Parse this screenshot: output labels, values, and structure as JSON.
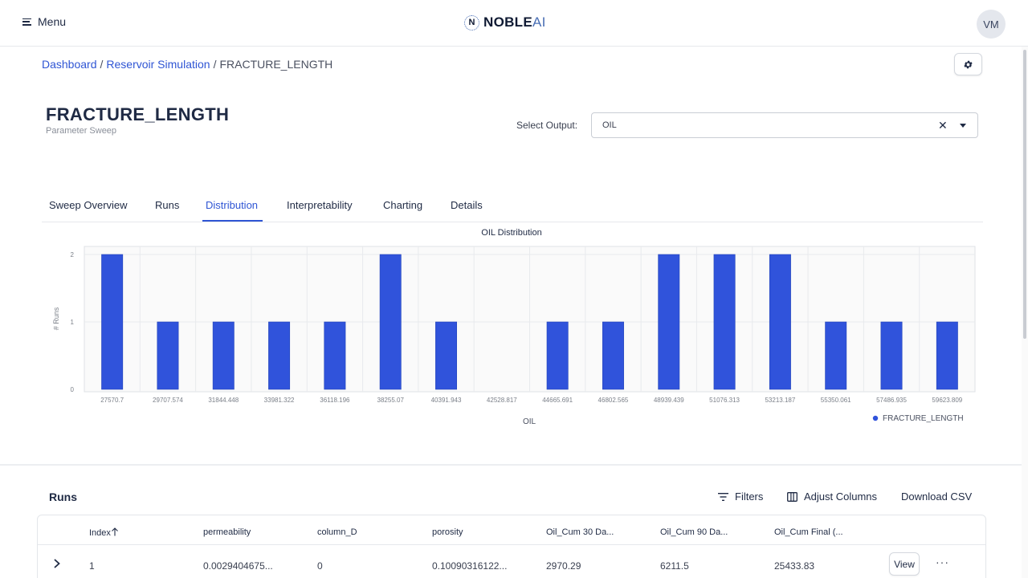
{
  "header": {
    "menu_label": "Menu",
    "logo_mark": "N",
    "logo_main": "NOBLE",
    "logo_accent": "AI",
    "avatar_initials": "VM"
  },
  "breadcrumb": {
    "items": [
      "Dashboard",
      "Reservoir Simulation"
    ],
    "current": "FRACTURE_LENGTH",
    "separator": "/"
  },
  "page": {
    "title": "FRACTURE_LENGTH",
    "subtitle": "Parameter Sweep"
  },
  "output_select": {
    "label": "Select Output:",
    "value": "OIL",
    "clear_glyph": "✕"
  },
  "tabs": [
    {
      "label": "Sweep Overview",
      "active": false
    },
    {
      "label": "Runs",
      "active": false
    },
    {
      "label": "Distribution",
      "active": true
    },
    {
      "label": "Interpretability",
      "active": false
    },
    {
      "label": "Charting",
      "active": false
    },
    {
      "label": "Details",
      "active": false
    }
  ],
  "chart_data": {
    "type": "bar",
    "title": "OIL Distribution",
    "xlabel": "OIL",
    "ylabel": "# Runs",
    "categories": [
      "27570.7",
      "29707.574",
      "31844.448",
      "33981.322",
      "36118.196",
      "38255.07",
      "40391.943",
      "42528.817",
      "44665.691",
      "46802.565",
      "48939.439",
      "51076.313",
      "53213.187",
      "55350.061",
      "57486.935",
      "59623.809"
    ],
    "series": [
      {
        "name": "FRACTURE_LENGTH",
        "values": [
          2,
          1,
          1,
          1,
          1,
          2,
          1,
          0,
          1,
          1,
          2,
          2,
          2,
          1,
          1,
          1
        ]
      }
    ],
    "yticks": [
      0,
      1,
      2
    ],
    "ylim": [
      0,
      2.12
    ],
    "grid": true,
    "legend_position": "bottom-right",
    "bar_color": "#3053db"
  },
  "runs": {
    "title": "Runs",
    "actions": {
      "filters": "Filters",
      "adjust_columns": "Adjust Columns",
      "download_csv": "Download CSV"
    },
    "columns": [
      "Index",
      "permeability",
      "column_D",
      "porosity",
      "Oil_Cum 30 Da...",
      "Oil_Cum 90 Da...",
      "Oil_Cum Final (..."
    ],
    "rows": [
      {
        "cells": [
          "1",
          "0.0029404675...",
          "0",
          "0.10090316122...",
          "2970.29",
          "6211.5",
          "25433.83"
        ],
        "view_label": "View",
        "more_glyph": "···"
      }
    ]
  }
}
